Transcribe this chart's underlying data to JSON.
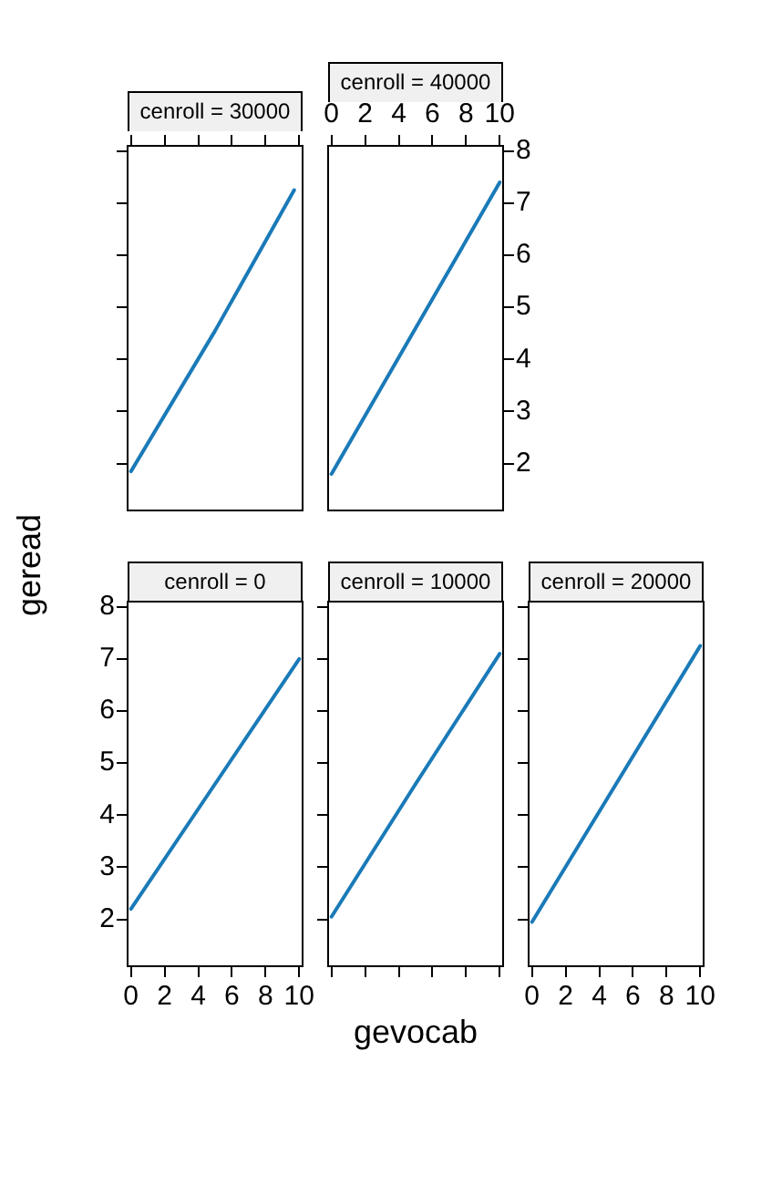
{
  "chart_data": [
    {
      "type": "line",
      "title": "cenroll = 30000",
      "xlim": [
        -0.2,
        10.2
      ],
      "xticks": [
        0,
        2,
        4,
        6,
        8,
        10
      ],
      "ylim": [
        1.1,
        8.1
      ],
      "yticks": [
        2,
        3,
        4,
        5,
        6,
        7,
        8
      ],
      "tick_labels": false,
      "grid": false,
      "marker": "none",
      "series": [
        {
          "color": "#1a7ab8",
          "x": [
            0,
            5,
            9.7
          ],
          "values": [
            1.85,
            4.55,
            7.25
          ]
        }
      ]
    },
    {
      "type": "line",
      "title": "cenroll = 40000",
      "xlim": [
        -0.2,
        10.2
      ],
      "xticks": [
        0,
        2,
        4,
        6,
        8,
        10
      ],
      "ylim": [
        1.1,
        8.1
      ],
      "yticks": [
        2,
        3,
        4,
        5,
        6,
        7,
        8
      ],
      "grid": false,
      "marker": "none",
      "series": [
        {
          "color": "#1a7ab8",
          "x": [
            0,
            5,
            10
          ],
          "values": [
            1.8,
            4.6,
            7.4
          ]
        }
      ]
    },
    {
      "type": "line",
      "title": "cenroll = 0",
      "ylabel": "geread",
      "xlim": [
        -0.2,
        10.2
      ],
      "xticks": [
        0,
        2,
        4,
        6,
        8,
        10
      ],
      "ylim": [
        1.1,
        8.1
      ],
      "yticks": [
        2,
        3,
        4,
        5,
        6,
        7,
        8
      ],
      "grid": false,
      "marker": "none",
      "series": [
        {
          "color": "#1a7ab8",
          "x": [
            0,
            5,
            10
          ],
          "values": [
            2.2,
            4.6,
            7.0
          ]
        }
      ]
    },
    {
      "type": "line",
      "title": "cenroll = 10000",
      "xlabel": "gevocab",
      "xlim": [
        -0.2,
        10.2
      ],
      "xticks": [
        0,
        2,
        4,
        6,
        8,
        10
      ],
      "ylim": [
        1.1,
        8.1
      ],
      "yticks": [
        2,
        3,
        4,
        5,
        6,
        7,
        8
      ],
      "tick_labels": false,
      "grid": false,
      "marker": "none",
      "series": [
        {
          "color": "#1a7ab8",
          "x": [
            0,
            5,
            10
          ],
          "values": [
            2.05,
            4.6,
            7.1
          ]
        }
      ]
    },
    {
      "type": "line",
      "title": "cenroll = 20000",
      "xlim": [
        -0.2,
        10.2
      ],
      "xticks": [
        0,
        2,
        4,
        6,
        8,
        10
      ],
      "ylim": [
        1.1,
        8.1
      ],
      "yticks": [
        2,
        3,
        4,
        5,
        6,
        7,
        8
      ],
      "tick_labels": "x",
      "grid": false,
      "marker": "none",
      "series": [
        {
          "color": "#1a7ab8",
          "x": [
            0,
            5,
            10
          ],
          "values": [
            1.95,
            4.6,
            7.25
          ]
        }
      ]
    }
  ]
}
